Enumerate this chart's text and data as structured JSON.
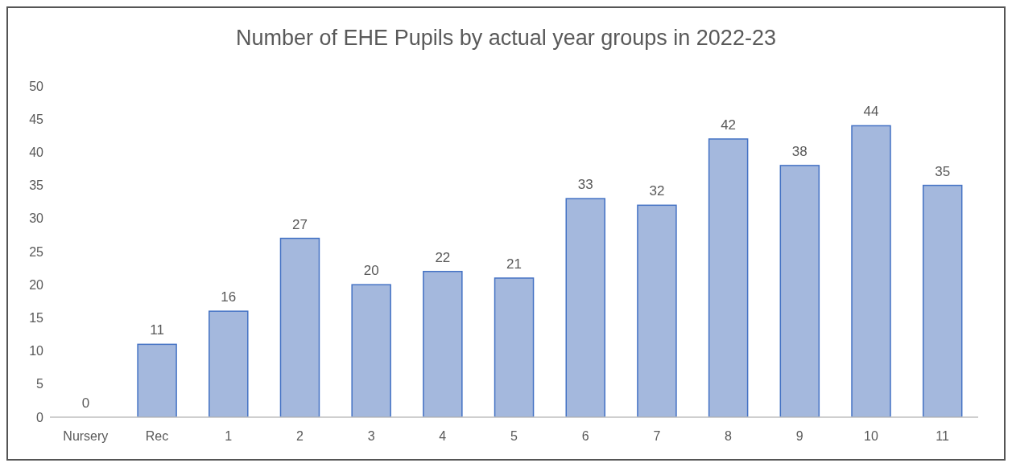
{
  "chart_data": {
    "type": "bar",
    "title": "Number of EHE Pupils by actual year groups in 2022-23",
    "categories": [
      "Nursery",
      "Rec",
      "1",
      "2",
      "3",
      "4",
      "5",
      "6",
      "7",
      "8",
      "9",
      "10",
      "11"
    ],
    "values": [
      0,
      11,
      16,
      27,
      20,
      22,
      21,
      33,
      32,
      42,
      38,
      44,
      35
    ],
    "color": "#a4b8dd",
    "ylim": [
      0,
      50
    ],
    "yticks": [
      0,
      5,
      10,
      15,
      20,
      25,
      30,
      35,
      40,
      45,
      50
    ],
    "grid": false,
    "legend": false,
    "data_labels": true
  }
}
